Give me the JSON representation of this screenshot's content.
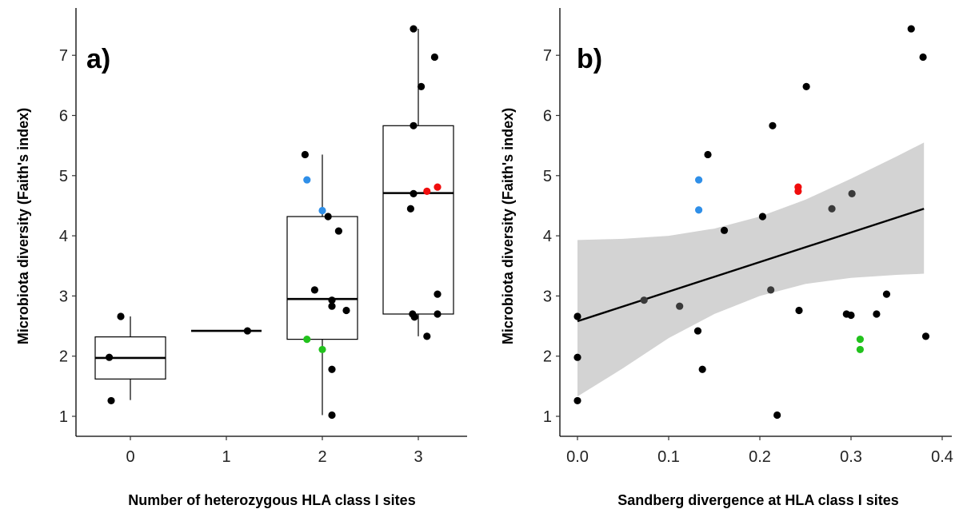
{
  "chart_data": [
    {
      "type": "box",
      "panel_label": "a)",
      "xlabel": "Number of heterozygous HLA class I sites",
      "ylabel": "Microbiota diversity (Faith's index)",
      "categories": [
        "0",
        "1",
        "2",
        "3"
      ],
      "ylim": [
        0.8,
        7.6
      ],
      "yticks": [
        "1",
        "2",
        "3",
        "4",
        "5",
        "6",
        "7"
      ],
      "boxes": [
        {
          "category": "0",
          "q1": 1.62,
          "median": 1.97,
          "q3": 2.32,
          "whisker_low": 1.27,
          "whisker_high": 2.66
        },
        {
          "category": "1",
          "q1": 2.42,
          "median": 2.42,
          "q3": 2.42,
          "whisker_low": 2.42,
          "whisker_high": 2.42
        },
        {
          "category": "2",
          "q1": 2.28,
          "median": 2.95,
          "q3": 4.32,
          "whisker_low": 1.02,
          "whisker_high": 5.35
        },
        {
          "category": "3",
          "q1": 2.7,
          "median": 4.71,
          "q3": 5.83,
          "whisker_low": 2.33,
          "whisker_high": 7.44
        }
      ],
      "points": [
        {
          "x": -0.2,
          "y": 1.26,
          "color": "black"
        },
        {
          "x": -0.22,
          "y": 1.98,
          "color": "black"
        },
        {
          "x": -0.1,
          "y": 2.66,
          "color": "black"
        },
        {
          "x": 1.22,
          "y": 2.42,
          "color": "black"
        },
        {
          "x": 1.82,
          "y": 5.35,
          "color": "black"
        },
        {
          "x": 1.84,
          "y": 4.93,
          "color": "blue"
        },
        {
          "x": 2.0,
          "y": 4.42,
          "color": "blue"
        },
        {
          "x": 2.06,
          "y": 4.32,
          "color": "black"
        },
        {
          "x": 2.17,
          "y": 4.08,
          "color": "black"
        },
        {
          "x": 1.92,
          "y": 3.1,
          "color": "black"
        },
        {
          "x": 2.1,
          "y": 2.93,
          "color": "black"
        },
        {
          "x": 2.1,
          "y": 2.83,
          "color": "black"
        },
        {
          "x": 2.25,
          "y": 2.76,
          "color": "black"
        },
        {
          "x": 1.84,
          "y": 2.28,
          "color": "green"
        },
        {
          "x": 2.0,
          "y": 2.11,
          "color": "green"
        },
        {
          "x": 2.1,
          "y": 1.78,
          "color": "black"
        },
        {
          "x": 2.1,
          "y": 1.02,
          "color": "black"
        },
        {
          "x": 2.95,
          "y": 7.44,
          "color": "black"
        },
        {
          "x": 3.17,
          "y": 6.97,
          "color": "black"
        },
        {
          "x": 3.03,
          "y": 6.48,
          "color": "black"
        },
        {
          "x": 2.95,
          "y": 5.83,
          "color": "black"
        },
        {
          "x": 3.2,
          "y": 4.81,
          "color": "red"
        },
        {
          "x": 3.09,
          "y": 4.74,
          "color": "red"
        },
        {
          "x": 2.95,
          "y": 4.7,
          "color": "black"
        },
        {
          "x": 2.92,
          "y": 4.45,
          "color": "black"
        },
        {
          "x": 3.2,
          "y": 3.03,
          "color": "black"
        },
        {
          "x": 2.94,
          "y": 2.7,
          "color": "black"
        },
        {
          "x": 2.96,
          "y": 2.65,
          "color": "black"
        },
        {
          "x": 3.2,
          "y": 2.7,
          "color": "black"
        },
        {
          "x": 3.09,
          "y": 2.33,
          "color": "black"
        }
      ]
    },
    {
      "type": "scatter",
      "panel_label": "b)",
      "xlabel": "Sandberg divergence at HLA class I sites",
      "ylabel": "Microbiota diversity (Faith's index)",
      "xlim": [
        -0.02,
        0.42
      ],
      "ylim": [
        0.8,
        7.6
      ],
      "xticks": [
        "0.0",
        "0.1",
        "0.2",
        "0.3",
        "0.4"
      ],
      "yticks": [
        "1",
        "2",
        "3",
        "4",
        "5",
        "6",
        "7"
      ],
      "regression": {
        "x0": 0.0,
        "y0": 2.58,
        "x1": 0.38,
        "y1": 4.45
      },
      "confidence_band": [
        {
          "x": 0.0,
          "lo": 1.33,
          "hi": 3.93
        },
        {
          "x": 0.05,
          "lo": 1.8,
          "hi": 3.95
        },
        {
          "x": 0.1,
          "lo": 2.3,
          "hi": 4.0
        },
        {
          "x": 0.15,
          "lo": 2.7,
          "hi": 4.12
        },
        {
          "x": 0.2,
          "lo": 3.0,
          "hi": 4.32
        },
        {
          "x": 0.25,
          "lo": 3.2,
          "hi": 4.6
        },
        {
          "x": 0.3,
          "lo": 3.3,
          "hi": 4.95
        },
        {
          "x": 0.35,
          "lo": 3.35,
          "hi": 5.32
        },
        {
          "x": 0.38,
          "lo": 3.37,
          "hi": 5.55
        }
      ],
      "points": [
        {
          "x": 0.0,
          "y": 1.26,
          "color": "black"
        },
        {
          "x": 0.0,
          "y": 1.98,
          "color": "black"
        },
        {
          "x": 0.0,
          "y": 2.66,
          "color": "black"
        },
        {
          "x": 0.073,
          "y": 2.93,
          "color": "dark"
        },
        {
          "x": 0.112,
          "y": 2.83,
          "color": "dark"
        },
        {
          "x": 0.133,
          "y": 4.93,
          "color": "blue"
        },
        {
          "x": 0.133,
          "y": 4.43,
          "color": "blue"
        },
        {
          "x": 0.132,
          "y": 2.42,
          "color": "black"
        },
        {
          "x": 0.137,
          "y": 1.78,
          "color": "black"
        },
        {
          "x": 0.143,
          "y": 5.35,
          "color": "black"
        },
        {
          "x": 0.161,
          "y": 4.09,
          "color": "black"
        },
        {
          "x": 0.203,
          "y": 4.32,
          "color": "black"
        },
        {
          "x": 0.212,
          "y": 3.1,
          "color": "dark"
        },
        {
          "x": 0.214,
          "y": 5.83,
          "color": "black"
        },
        {
          "x": 0.219,
          "y": 1.02,
          "color": "black"
        },
        {
          "x": 0.242,
          "y": 4.81,
          "color": "red"
        },
        {
          "x": 0.242,
          "y": 4.74,
          "color": "red"
        },
        {
          "x": 0.243,
          "y": 2.76,
          "color": "black"
        },
        {
          "x": 0.251,
          "y": 6.48,
          "color": "black"
        },
        {
          "x": 0.279,
          "y": 4.45,
          "color": "dark"
        },
        {
          "x": 0.295,
          "y": 2.7,
          "color": "black"
        },
        {
          "x": 0.3,
          "y": 2.68,
          "color": "black"
        },
        {
          "x": 0.301,
          "y": 4.7,
          "color": "dark"
        },
        {
          "x": 0.31,
          "y": 2.28,
          "color": "green"
        },
        {
          "x": 0.31,
          "y": 2.11,
          "color": "green"
        },
        {
          "x": 0.328,
          "y": 2.7,
          "color": "black"
        },
        {
          "x": 0.339,
          "y": 3.03,
          "color": "black"
        },
        {
          "x": 0.366,
          "y": 7.44,
          "color": "black"
        },
        {
          "x": 0.379,
          "y": 6.97,
          "color": "black"
        },
        {
          "x": 0.382,
          "y": 2.33,
          "color": "black"
        }
      ]
    }
  ],
  "colors": {
    "black": "#000000",
    "dark": "#3a3a3a",
    "blue": "#2f8fe8",
    "green": "#22c21d",
    "red": "#f00d0d",
    "band": "#d3d3d3"
  }
}
